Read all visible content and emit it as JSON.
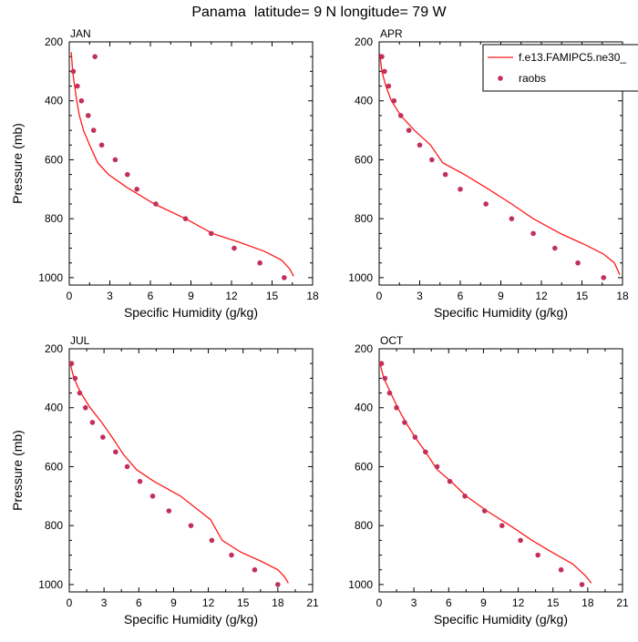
{
  "title": "Panama  latitude= 9 N longitude= 79 W",
  "colors": {
    "model": "#ff1a1a",
    "raobs": "#c2305a",
    "axis": "#000000"
  },
  "legend": {
    "model_label": "f.e13.FAMIPC5.ne30_",
    "obs_label": "raobs",
    "placement": "top-right of APR panel"
  },
  "chart_data": [
    {
      "type": "line+scatter",
      "panel": "JAN",
      "xlabel": "Specific Humidity (g/kg)",
      "ylabel": "Pressure (mb)",
      "xlim": [
        0,
        18
      ],
      "ylim": [
        1025,
        200
      ],
      "y_inverted": true,
      "xticks": [
        0,
        3,
        6,
        9,
        12,
        15,
        18
      ],
      "yticks": [
        200,
        400,
        600,
        800,
        1000
      ],
      "series": [
        {
          "name": "f.e13.FAMIPC5.ne30_",
          "kind": "line",
          "x": [
            0.15,
            0.25,
            0.4,
            0.55,
            0.75,
            1.05,
            1.5,
            2.1,
            2.9,
            4.3,
            6.3,
            8.6,
            10.6,
            12.6,
            14.4,
            15.7,
            16.3,
            16.6
          ],
          "y": [
            235,
            300,
            350,
            400,
            450,
            500,
            550,
            610,
            650,
            695,
            750,
            800,
            850,
            880,
            910,
            940,
            970,
            995
          ]
        },
        {
          "name": "raobs",
          "kind": "scatter",
          "x": [
            1.9,
            0.3,
            0.6,
            0.9,
            1.4,
            1.8,
            2.4,
            3.4,
            4.3,
            5.0,
            6.4,
            8.6,
            10.5,
            12.2,
            14.1,
            15.9
          ],
          "y": [
            250,
            300,
            350,
            400,
            450,
            500,
            550,
            600,
            650,
            700,
            750,
            800,
            850,
            900,
            950,
            1000
          ]
        }
      ]
    },
    {
      "type": "line+scatter",
      "panel": "APR",
      "xlabel": "Specific Humidity (g/kg)",
      "ylabel": "",
      "xlim": [
        0,
        18
      ],
      "ylim": [
        1025,
        200
      ],
      "y_inverted": true,
      "xticks": [
        0,
        3,
        6,
        9,
        12,
        15,
        18
      ],
      "yticks": [
        200,
        400,
        600,
        800,
        1000
      ],
      "series": [
        {
          "name": "f.e13.FAMIPC5.ne30_",
          "kind": "line",
          "x": [
            0.05,
            0.2,
            0.5,
            0.9,
            1.6,
            2.6,
            3.8,
            4.7,
            6.3,
            8.1,
            9.8,
            11.4,
            13.4,
            15.3,
            16.6,
            17.4,
            17.8
          ],
          "y": [
            240,
            300,
            350,
            400,
            450,
            500,
            550,
            610,
            650,
            700,
            750,
            800,
            850,
            890,
            920,
            950,
            990
          ]
        },
        {
          "name": "raobs",
          "kind": "scatter",
          "x": [
            0.2,
            0.4,
            0.7,
            1.1,
            1.6,
            2.2,
            3.0,
            3.9,
            4.9,
            6.0,
            7.9,
            9.8,
            11.4,
            13.0,
            14.7,
            16.6
          ],
          "y": [
            250,
            300,
            350,
            400,
            450,
            500,
            550,
            600,
            650,
            700,
            750,
            800,
            850,
            900,
            950,
            1000
          ]
        }
      ]
    },
    {
      "type": "line+scatter",
      "panel": "JUL",
      "xlabel": "Specific Humidity (g/kg)",
      "ylabel": "Pressure (mb)",
      "xlim": [
        0,
        21
      ],
      "ylim": [
        1025,
        200
      ],
      "y_inverted": true,
      "xticks": [
        0,
        3,
        6,
        9,
        12,
        15,
        18,
        21
      ],
      "yticks": [
        200,
        400,
        600,
        800,
        1000
      ],
      "series": [
        {
          "name": "f.e13.FAMIPC5.ne30_",
          "kind": "line",
          "x": [
            0.05,
            0.4,
            1.0,
            1.8,
            2.8,
            3.7,
            4.7,
            5.8,
            7.3,
            9.6,
            12.2,
            13.2,
            14.8,
            16.5,
            18.0,
            18.6,
            18.9
          ],
          "y": [
            245,
            300,
            350,
            400,
            450,
            500,
            560,
            610,
            650,
            700,
            780,
            850,
            890,
            920,
            950,
            975,
            995
          ]
        },
        {
          "name": "raobs",
          "kind": "scatter",
          "x": [
            0.2,
            0.5,
            0.9,
            1.4,
            2.0,
            2.9,
            4.0,
            5.0,
            6.1,
            7.2,
            8.6,
            10.5,
            12.3,
            14.0,
            16.0,
            18.0
          ],
          "y": [
            250,
            300,
            350,
            400,
            450,
            500,
            550,
            600,
            650,
            700,
            750,
            800,
            850,
            900,
            950,
            1000
          ]
        }
      ]
    },
    {
      "type": "line+scatter",
      "panel": "OCT",
      "xlabel": "Specific Humidity (g/kg)",
      "ylabel": "",
      "xlim": [
        0,
        21
      ],
      "ylim": [
        1025,
        200
      ],
      "y_inverted": true,
      "xticks": [
        0,
        3,
        6,
        9,
        12,
        15,
        18,
        21
      ],
      "yticks": [
        200,
        400,
        600,
        800,
        1000
      ],
      "series": [
        {
          "name": "f.e13.FAMIPC5.ne30_",
          "kind": "line",
          "x": [
            0.05,
            0.4,
            1.0,
            1.6,
            2.3,
            3.1,
            4.0,
            5.0,
            6.2,
            7.5,
            9.3,
            11.3,
            13.2,
            14.9,
            16.7,
            17.8,
            18.3
          ],
          "y": [
            245,
            300,
            350,
            400,
            450,
            500,
            550,
            610,
            650,
            700,
            750,
            800,
            850,
            890,
            930,
            970,
            995
          ]
        },
        {
          "name": "raobs",
          "kind": "scatter",
          "x": [
            0.2,
            0.5,
            0.9,
            1.5,
            2.2,
            3.1,
            4.0,
            5.0,
            6.1,
            7.4,
            9.1,
            10.6,
            12.2,
            13.7,
            15.7,
            17.5
          ],
          "y": [
            250,
            300,
            350,
            400,
            450,
            500,
            550,
            600,
            650,
            700,
            750,
            800,
            850,
            900,
            950,
            1000
          ]
        }
      ]
    }
  ]
}
